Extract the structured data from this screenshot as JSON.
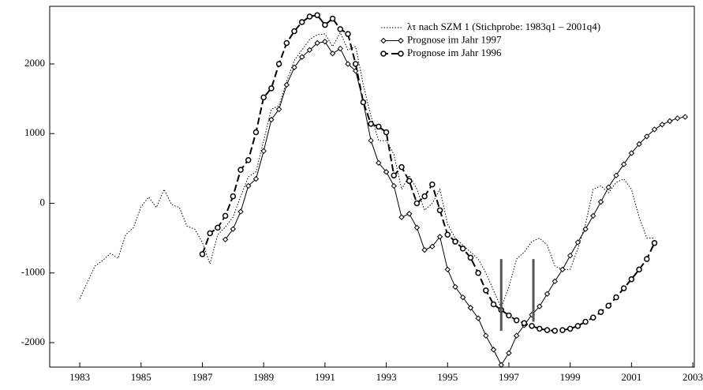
{
  "chart_data": {
    "type": "line",
    "xlim": [
      1982.02,
      2003.05
    ],
    "ylim": [
      -2351,
      2827
    ],
    "xticks": [
      1983,
      1985,
      1987,
      1989,
      1991,
      1993,
      1995,
      1997,
      1999,
      2001,
      2003
    ],
    "yticks": [
      -2000,
      -1000,
      0,
      1000,
      2000
    ],
    "legend": "upper right",
    "series": [
      {
        "name": "λτ nach SZM 1 (Stichprobe: 1983q1 – 2001q4)",
        "color": "#000000",
        "style": "dotted",
        "x": [
          1983,
          1983.25,
          1983.5,
          1983.75,
          1984,
          1984.25,
          1984.5,
          1984.75,
          1985,
          1985.25,
          1985.5,
          1985.75,
          1986,
          1986.25,
          1986.5,
          1986.75,
          1987,
          1987.25,
          1987.5,
          1987.75,
          1988,
          1988.25,
          1988.5,
          1988.75,
          1989,
          1989.25,
          1989.5,
          1989.75,
          1990,
          1990.25,
          1990.5,
          1990.75,
          1991,
          1991.25,
          1991.5,
          1991.75,
          1992,
          1992.25,
          1992.5,
          1992.75,
          1993,
          1993.25,
          1993.5,
          1993.75,
          1994,
          1994.25,
          1994.5,
          1994.75,
          1995,
          1995.25,
          1995.5,
          1995.75,
          1996,
          1996.25,
          1996.5,
          1996.75,
          1997,
          1997.25,
          1997.5,
          1997.75,
          1998,
          1998.25,
          1998.5,
          1998.75,
          1999,
          1999.25,
          1999.5,
          1999.75,
          2000,
          2000.25,
          2000.5,
          2000.75,
          2001,
          2001.25,
          2001.5,
          2001.75
        ],
        "values": [
          -1370,
          -1130,
          -900,
          -820,
          -720,
          -790,
          -450,
          -350,
          -50,
          90,
          -60,
          200,
          -20,
          -60,
          -330,
          -370,
          -560,
          -870,
          -450,
          -340,
          -200,
          100,
          380,
          450,
          900,
          1350,
          1400,
          1750,
          2050,
          2200,
          2350,
          2420,
          2430,
          2250,
          2450,
          2200,
          2250,
          1700,
          1250,
          900,
          900,
          700,
          200,
          400,
          200,
          -100,
          0,
          200,
          -300,
          -500,
          -600,
          -700,
          -800,
          -1000,
          -1250,
          -1500,
          -1200,
          -800,
          -700,
          -550,
          -500,
          -600,
          -900,
          -950,
          -950,
          -650,
          -300,
          200,
          250,
          150,
          300,
          350,
          200,
          -200,
          -500,
          -500
        ]
      },
      {
        "name": "Prognose im Jahr 1997",
        "color": "#000000",
        "style": "solid",
        "marker": "diamond",
        "x": [
          1987.75,
          1988,
          1988.25,
          1988.5,
          1988.75,
          1989,
          1989.25,
          1989.5,
          1989.75,
          1990,
          1990.25,
          1990.5,
          1990.75,
          1991,
          1991.25,
          1991.5,
          1991.75,
          1992,
          1992.25,
          1992.5,
          1992.75,
          1993,
          1993.25,
          1993.5,
          1993.75,
          1994,
          1994.25,
          1994.5,
          1994.75,
          1995,
          1995.25,
          1995.5,
          1995.75,
          1996,
          1996.25,
          1996.5,
          1996.75,
          1997,
          1997.25,
          1997.5,
          1997.75,
          1998,
          1998.25,
          1998.5,
          1998.75,
          1999,
          1999.25,
          1999.5,
          1999.75,
          2000,
          2000.25,
          2000.5,
          2000.75,
          2001,
          2001.25,
          2001.5,
          2001.75,
          2002,
          2002.25,
          2002.5,
          2002.75
        ],
        "values": [
          -520,
          -370,
          -120,
          250,
          350,
          750,
          1200,
          1350,
          1700,
          1950,
          2100,
          2200,
          2300,
          2320,
          2150,
          2220,
          2000,
          1900,
          1450,
          900,
          580,
          450,
          250,
          -200,
          -150,
          -350,
          -670,
          -620,
          -480,
          -950,
          -1200,
          -1350,
          -1500,
          -1650,
          -1900,
          -2100,
          -2320,
          -2150,
          -1900,
          -1750,
          -1600,
          -1480,
          -1300,
          -1120,
          -950,
          -750,
          -560,
          -370,
          -180,
          20,
          230,
          400,
          560,
          720,
          850,
          960,
          1060,
          1130,
          1180,
          1220,
          1240
        ]
      },
      {
        "name": "Prognose im Jahr  1996",
        "color": "#000000",
        "style": "dashed",
        "marker": "circle",
        "x": [
          1987,
          1987.25,
          1987.5,
          1987.75,
          1988,
          1988.25,
          1988.5,
          1988.75,
          1989,
          1989.25,
          1989.5,
          1989.75,
          1990,
          1990.25,
          1990.5,
          1990.75,
          1991,
          1991.25,
          1991.5,
          1991.75,
          1992,
          1992.25,
          1992.5,
          1992.75,
          1993,
          1993.25,
          1993.5,
          1993.75,
          1994,
          1994.25,
          1994.5,
          1994.75,
          1995,
          1995.25,
          1995.5,
          1995.75,
          1996,
          1996.25,
          1996.5,
          1996.75,
          1997,
          1997.25,
          1997.5,
          1997.75,
          1998,
          1998.25,
          1998.5,
          1998.75,
          1999,
          1999.25,
          1999.5,
          1999.75,
          2000,
          2000.25,
          2000.5,
          2000.75,
          2001,
          2001.25,
          2001.5,
          2001.75
        ],
        "values": [
          -730,
          -430,
          -350,
          -180,
          100,
          480,
          620,
          1020,
          1520,
          1650,
          2000,
          2300,
          2470,
          2600,
          2680,
          2700,
          2560,
          2650,
          2500,
          2430,
          2000,
          1450,
          1140,
          1100,
          1020,
          400,
          520,
          320,
          0,
          100,
          270,
          -100,
          -450,
          -550,
          -650,
          -780,
          -1000,
          -1250,
          -1450,
          -1530,
          -1610,
          -1680,
          -1720,
          -1760,
          -1800,
          -1820,
          -1830,
          -1820,
          -1800,
          -1760,
          -1700,
          -1640,
          -1560,
          -1470,
          -1350,
          -1220,
          -1090,
          -950,
          -800,
          -570
        ]
      }
    ],
    "markers": [
      {
        "x": 1996.75,
        "y": [
          -800,
          -1830
        ]
      },
      {
        "x": 1997.8,
        "y": [
          -800,
          -1700
        ]
      }
    ]
  }
}
